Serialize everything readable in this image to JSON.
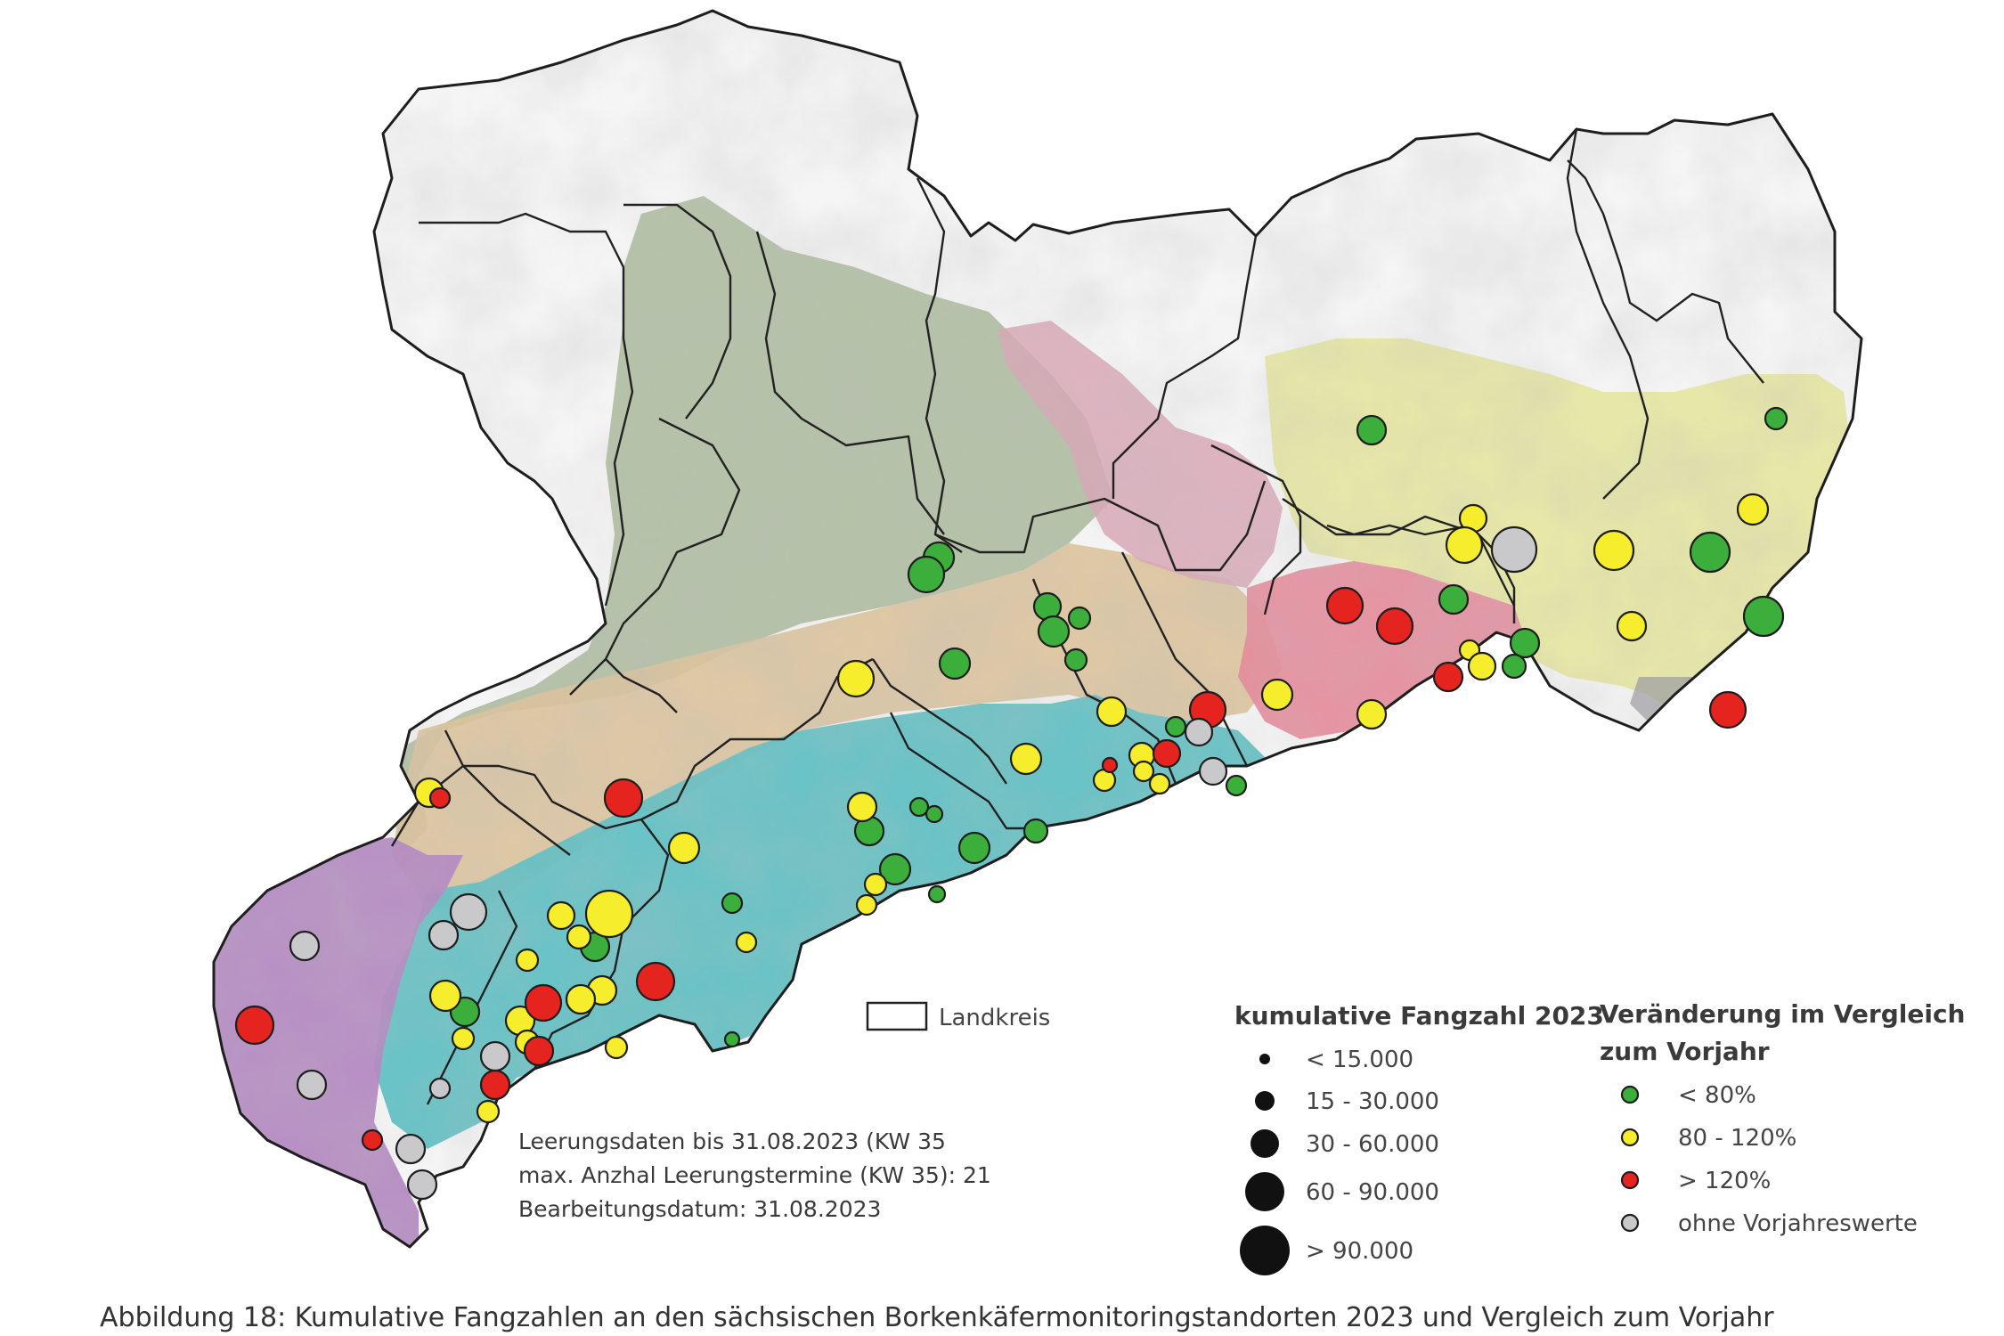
{
  "caption": "Abbildung 18: Kumulative Fangzahlen an den sächsischen Borkenkäfermonitoringstandorten 2023 und Vergleich zum Vorjahr",
  "landkreis_legend": {
    "label": "Landkreis"
  },
  "info_text": {
    "line1": "Leerungsdaten bis 31.08.2023 (KW 35",
    "line2": "max. Anzhal Leerungstermine (KW 35): 21",
    "line3": "Bearbeitungsdatum: 31.08.2023"
  },
  "size_legend": {
    "title": "kumulative Fangzahl 2023",
    "classes": [
      "< 15.000",
      "15 - 30.000",
      "30 - 60.000",
      "60 - 90.000",
      "> 90.000"
    ]
  },
  "color_legend": {
    "title_line1": "Veränderung im Vergleich",
    "title_line2": "zum Vorjahr",
    "classes": [
      {
        "label": "< 80%",
        "color": "#3cae3c"
      },
      {
        "label": "80 - 120%",
        "color": "#f6ee2c"
      },
      {
        "label": "> 120%",
        "color": "#e5231f"
      },
      {
        "label": "ohne Vorjahreswerte",
        "color": "#c9c9cb"
      }
    ]
  },
  "colors": {
    "region_green": "#a9b99a",
    "region_tan": "#dcc39c",
    "region_teal": "#62c0c3",
    "region_purple": "#b48ac2",
    "region_pink": "#d9a7b6",
    "region_rose": "#e68a9a",
    "region_yellow": "#e6e7a3",
    "outline": "#1e1e1e"
  }
}
